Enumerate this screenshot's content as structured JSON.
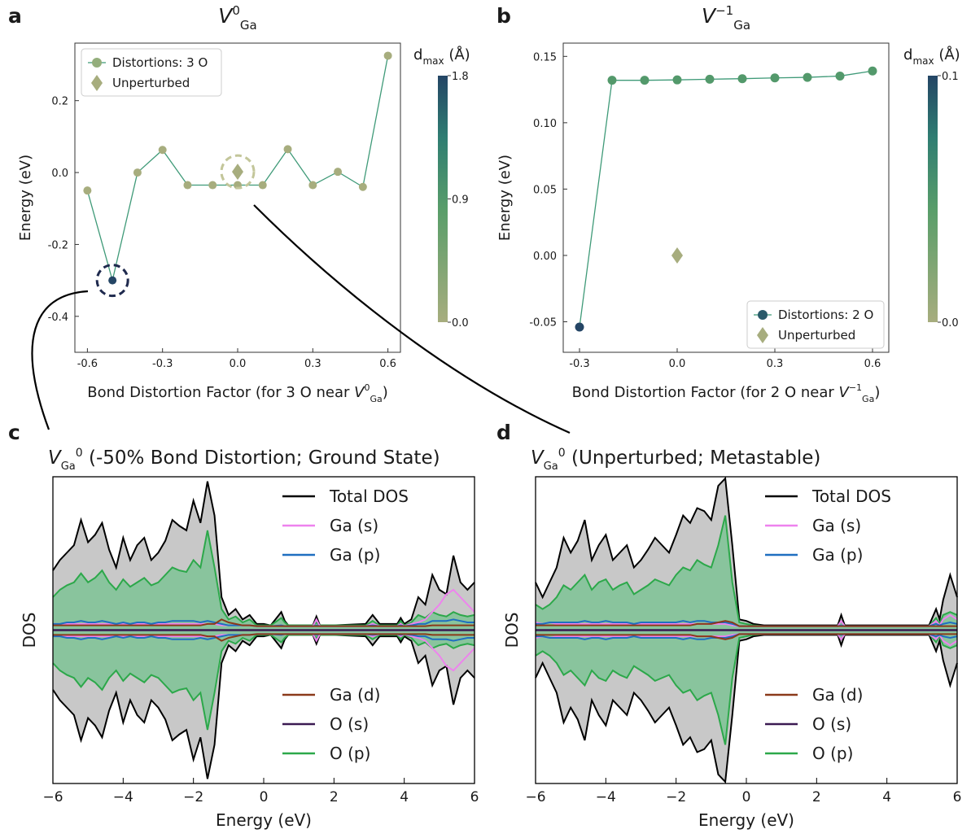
{
  "panels": {
    "a": "a",
    "b": "b",
    "c": "c",
    "d": "d"
  },
  "colors": {
    "cmap_low": "#a7ad7e",
    "cmap_mid": "#3f9466",
    "cmap_high": "#244565",
    "line_ab": "#3f9a78",
    "total": "#000000",
    "ga_s": "#ee82ee",
    "ga_p": "#1f6fc0",
    "ga_d": "#8b3a1a",
    "o_s": "#3b1a52",
    "o_p": "#2ca84a",
    "fill_total": "#c8c8c8",
    "fill_op": "#89c49d",
    "dashed_unp": "#c3c69a",
    "dashed_min": "#1f2a4e"
  },
  "chart_data": [
    {
      "type": "scatter",
      "panel": "a",
      "title": "V^0_Ga",
      "title_parts": {
        "main": "V",
        "sup": "0",
        "sub": "Ga"
      },
      "xlabel": "Bond Distortion Factor (for 3 O near V^0_Ga)",
      "xlabel_parts": {
        "text": "Bond Distortion Factor (for 3 O near ",
        "v": "V",
        "sup": "0",
        "sub": "Ga",
        "end": ")"
      },
      "ylabel": "Energy (eV)",
      "xlim": [
        -0.65,
        0.65
      ],
      "ylim": [
        -0.5,
        0.36
      ],
      "xticks": [
        -0.6,
        -0.3,
        0.0,
        0.3,
        0.6
      ],
      "xtick_labels": [
        "-0.6",
        "-0.3",
        "0.0",
        "0.3",
        "0.6"
      ],
      "yticks": [
        -0.4,
        -0.2,
        0.0,
        0.2
      ],
      "ytick_labels": [
        "-0.4",
        "-0.2",
        "0.0",
        "0.2"
      ],
      "series": [
        {
          "name": "Distortions: 3 O",
          "x": [
            -0.6,
            -0.5,
            -0.4,
            -0.3,
            -0.2,
            -0.1,
            0.0,
            0.1,
            0.2,
            0.3,
            0.4,
            0.5,
            0.6
          ],
          "y": [
            -0.05,
            -0.3,
            0.0,
            0.063,
            -0.035,
            -0.035,
            -0.035,
            -0.035,
            0.065,
            -0.035,
            0.002,
            -0.04,
            0.325
          ],
          "dmax": [
            0.0,
            1.8,
            0.0,
            0.0,
            0.0,
            0.0,
            0.0,
            0.0,
            0.0,
            0.0,
            0.0,
            0.0,
            0.0
          ]
        }
      ],
      "unperturbed": {
        "name": "Unperturbed",
        "x": 0.0,
        "y": 0.002
      },
      "legend_entries": [
        "Distortions: 3 O",
        "Unperturbed"
      ],
      "legend": "top-left",
      "colorbar": {
        "label": "d_max (Å)",
        "label_main": "d",
        "label_sub": "max",
        "label_unit": "(Å)",
        "ticks": [
          0.0,
          0.9,
          1.8
        ],
        "tick_labels": [
          "0.0",
          "0.9",
          "1.8"
        ]
      }
    },
    {
      "type": "scatter",
      "panel": "b",
      "title": "V^-1_Ga",
      "title_parts": {
        "main": "V",
        "sup": "−1",
        "sub": "Ga"
      },
      "xlabel": "Bond Distortion Factor (for 2 O near V^-1_Ga)",
      "xlabel_parts": {
        "text": "Bond Distortion Factor (for 2 O near ",
        "v": "V",
        "sup": "−1",
        "sub": "Ga",
        "end": ")"
      },
      "ylabel": "Energy (eV)",
      "xlim": [
        -0.35,
        0.65
      ],
      "ylim": [
        -0.073,
        0.16
      ],
      "xticks": [
        -0.3,
        0.0,
        0.3,
        0.6
      ],
      "xtick_labels": [
        "-0.3",
        "0.0",
        "0.3",
        "0.6"
      ],
      "yticks": [
        -0.05,
        0.0,
        0.05,
        0.1,
        0.15
      ],
      "ytick_labels": [
        "-0.05",
        "0.00",
        "0.05",
        "0.10",
        "0.15"
      ],
      "series": [
        {
          "name": "Distortions: 2 O",
          "x": [
            -0.3,
            -0.2,
            -0.1,
            0.0,
            0.1,
            0.2,
            0.3,
            0.4,
            0.5,
            0.6
          ],
          "y": [
            -0.054,
            0.132,
            0.132,
            0.1323,
            0.1328,
            0.1332,
            0.1338,
            0.1342,
            0.1352,
            0.139
          ],
          "dmax": [
            0.1,
            0.05,
            0.05,
            0.05,
            0.05,
            0.05,
            0.05,
            0.05,
            0.05,
            0.05
          ]
        }
      ],
      "unperturbed": {
        "name": "Unperturbed",
        "x": 0.0,
        "y": 0.0
      },
      "legend_entries": [
        "Distortions: 2 O",
        "Unperturbed"
      ],
      "legend": "bottom-right",
      "colorbar": {
        "label": "d_max (Å)",
        "label_main": "d",
        "label_sub": "max",
        "label_unit": "(Å)",
        "ticks": [
          0.0,
          0.1
        ],
        "tick_labels": [
          "0.0",
          "0.1"
        ]
      }
    },
    {
      "type": "area",
      "panel": "c",
      "title": "V_Ga^0 (-50% Bond Distortion; Ground State)",
      "title_parts": {
        "main": "V",
        "sub": "Ga",
        "sup": "0",
        "rest": " (-50% Bond Distortion; Ground State)"
      },
      "xlabel": "Energy (eV)",
      "ylabel": "DOS",
      "xlim": [
        -6,
        6
      ],
      "xticks": [
        -6,
        -4,
        -2,
        0,
        2,
        4,
        6
      ],
      "xtick_labels": [
        "−6",
        "−4",
        "−2",
        "0",
        "2",
        "4",
        "6"
      ],
      "ylim": [
        -1,
        1
      ],
      "legend_top": [
        "Total DOS",
        "Ga (s)",
        "Ga (p)"
      ],
      "legend_bottom": [
        "Ga (d)",
        "O (s)",
        "O (p)"
      ],
      "x": [
        -6,
        -5.8,
        -5.6,
        -5.4,
        -5.2,
        -5.0,
        -4.8,
        -4.6,
        -4.4,
        -4.2,
        -4.0,
        -3.8,
        -3.6,
        -3.4,
        -3.2,
        -3.0,
        -2.8,
        -2.6,
        -2.4,
        -2.2,
        -2.0,
        -1.8,
        -1.6,
        -1.4,
        -1.2,
        -1.0,
        -0.8,
        -0.6,
        -0.4,
        -0.2,
        0,
        0.2,
        0.5,
        0.6,
        0.7,
        1.0,
        1.4,
        1.5,
        1.6,
        2.0,
        2.9,
        3.1,
        3.3,
        3.8,
        3.9,
        4.0,
        4.2,
        4.4,
        4.6,
        4.8,
        5.0,
        5.2,
        5.4,
        5.6,
        5.8,
        6.0
      ],
      "total": [
        0.38,
        0.45,
        0.5,
        0.55,
        0.72,
        0.57,
        0.62,
        0.7,
        0.52,
        0.4,
        0.6,
        0.45,
        0.55,
        0.6,
        0.45,
        0.5,
        0.58,
        0.72,
        0.68,
        0.65,
        0.85,
        0.7,
        0.98,
        0.75,
        0.2,
        0.08,
        0.12,
        0.05,
        0.08,
        0.02,
        0.02,
        0.01,
        0.1,
        0.04,
        0.01,
        0.01,
        0.01,
        0.07,
        0.01,
        0.01,
        0.02,
        0.08,
        0.02,
        0.02,
        0.06,
        0.02,
        0.05,
        0.2,
        0.15,
        0.35,
        0.25,
        0.22,
        0.48,
        0.3,
        0.25,
        0.3
      ],
      "o_p": [
        0.2,
        0.25,
        0.28,
        0.3,
        0.36,
        0.3,
        0.33,
        0.38,
        0.3,
        0.25,
        0.32,
        0.27,
        0.3,
        0.33,
        0.28,
        0.3,
        0.35,
        0.4,
        0.38,
        0.37,
        0.45,
        0.4,
        0.65,
        0.4,
        0.12,
        0.05,
        0.07,
        0.03,
        0.05,
        0.01,
        0.01,
        0.01,
        0.06,
        0.03,
        0.01,
        0.01,
        0.01,
        0.03,
        0.01,
        0.01,
        0.01,
        0.04,
        0.01,
        0.01,
        0.04,
        0.01,
        0.03,
        0.08,
        0.06,
        0.1,
        0.08,
        0.07,
        0.1,
        0.08,
        0.07,
        0.08
      ],
      "ga_s": [
        0.02,
        0.02,
        0.02,
        0.02,
        0.02,
        0.02,
        0.02,
        0.02,
        0.02,
        0.02,
        0.02,
        0.02,
        0.02,
        0.02,
        0.02,
        0.02,
        0.02,
        0.02,
        0.02,
        0.02,
        0.02,
        0.02,
        0.02,
        0.02,
        0.01,
        0.01,
        0.01,
        0.01,
        0.01,
        0.005,
        0.005,
        0.005,
        0.01,
        0.005,
        0.005,
        0.005,
        0.005,
        0.05,
        0.005,
        0.005,
        0.005,
        0.02,
        0.005,
        0.005,
        0.02,
        0.005,
        0.02,
        0.03,
        0.05,
        0.1,
        0.15,
        0.22,
        0.25,
        0.2,
        0.15,
        0.1
      ],
      "ga_p": [
        0.02,
        0.02,
        0.03,
        0.03,
        0.04,
        0.03,
        0.03,
        0.04,
        0.03,
        0.02,
        0.03,
        0.02,
        0.03,
        0.03,
        0.02,
        0.03,
        0.03,
        0.04,
        0.04,
        0.04,
        0.04,
        0.03,
        0.04,
        0.03,
        0.02,
        0.01,
        0.01,
        0.01,
        0.01,
        0.005,
        0.005,
        0.005,
        0.01,
        0.005,
        0.005,
        0.005,
        0.005,
        0.01,
        0.005,
        0.005,
        0.005,
        0.01,
        0.005,
        0.005,
        0.01,
        0.005,
        0.01,
        0.02,
        0.02,
        0.04,
        0.04,
        0.04,
        0.05,
        0.04,
        0.03,
        0.03
      ],
      "ga_d": [
        0.01,
        0.01,
        0.01,
        0.01,
        0.01,
        0.01,
        0.01,
        0.01,
        0.01,
        0.01,
        0.01,
        0.01,
        0.01,
        0.01,
        0.01,
        0.01,
        0.01,
        0.01,
        0.01,
        0.01,
        0.01,
        0.01,
        0.02,
        0.02,
        0.05,
        0.03,
        0.02,
        0.01,
        0.01,
        0.005,
        0.005,
        0.005,
        0.005,
        0.005,
        0.005,
        0.005,
        0.005,
        0.005,
        0.005,
        0.005,
        0.005,
        0.005,
        0.005,
        0.005,
        0.005,
        0.005,
        0.005,
        0.005,
        0.005,
        0.01,
        0.01,
        0.01,
        0.01,
        0.01,
        0.01,
        0.01
      ]
    },
    {
      "type": "area",
      "panel": "d",
      "title": "V_Ga^0 (Unperturbed; Metastable)",
      "title_parts": {
        "main": "V",
        "sub": "Ga",
        "sup": "0",
        "rest": " (Unperturbed; Metastable)"
      },
      "xlabel": "Energy (eV)",
      "ylabel": "DOS",
      "xlim": [
        -6,
        6
      ],
      "xticks": [
        -6,
        -4,
        -2,
        0,
        2,
        4,
        6
      ],
      "xtick_labels": [
        "−6",
        "−4",
        "−2",
        "0",
        "2",
        "4",
        "6"
      ],
      "ylim": [
        -1,
        1
      ],
      "legend_top": [
        "Total DOS",
        "Ga (s)",
        "Ga (p)"
      ],
      "legend_bottom": [
        "Ga (d)",
        "O (s)",
        "O (p)"
      ],
      "x": [
        -6,
        -5.8,
        -5.6,
        -5.4,
        -5.2,
        -5.0,
        -4.8,
        -4.6,
        -4.4,
        -4.2,
        -4.0,
        -3.8,
        -3.6,
        -3.4,
        -3.2,
        -3.0,
        -2.8,
        -2.6,
        -2.4,
        -2.2,
        -2.0,
        -1.8,
        -1.6,
        -1.4,
        -1.2,
        -1.0,
        -0.8,
        -0.6,
        -0.4,
        -0.2,
        0,
        0.2,
        0.5,
        1.0,
        2.0,
        2.6,
        2.7,
        2.8,
        3.5,
        4.5,
        5.2,
        5.4,
        5.5,
        5.6,
        5.8,
        6.0
      ],
      "total": [
        0.3,
        0.2,
        0.3,
        0.4,
        0.6,
        0.5,
        0.58,
        0.72,
        0.45,
        0.55,
        0.62,
        0.45,
        0.5,
        0.55,
        0.4,
        0.45,
        0.52,
        0.6,
        0.55,
        0.5,
        0.62,
        0.75,
        0.7,
        0.8,
        0.78,
        0.72,
        0.95,
        1.0,
        0.55,
        0.05,
        0.04,
        0.02,
        0.01,
        0.01,
        0.01,
        0.01,
        0.08,
        0.01,
        0.01,
        0.01,
        0.01,
        0.12,
        0.05,
        0.18,
        0.35,
        0.2
      ],
      "o_p": [
        0.15,
        0.12,
        0.15,
        0.2,
        0.28,
        0.25,
        0.3,
        0.35,
        0.25,
        0.3,
        0.32,
        0.25,
        0.28,
        0.3,
        0.22,
        0.25,
        0.28,
        0.32,
        0.3,
        0.28,
        0.35,
        0.4,
        0.38,
        0.45,
        0.42,
        0.4,
        0.55,
        0.75,
        0.3,
        0.03,
        0.02,
        0.01,
        0.005,
        0.005,
        0.005,
        0.005,
        0.04,
        0.005,
        0.005,
        0.005,
        0.005,
        0.06,
        0.02,
        0.08,
        0.1,
        0.08
      ],
      "ga_s": [
        0.03,
        0.02,
        0.03,
        0.02,
        0.02,
        0.02,
        0.02,
        0.02,
        0.02,
        0.02,
        0.02,
        0.02,
        0.02,
        0.02,
        0.02,
        0.02,
        0.02,
        0.02,
        0.02,
        0.02,
        0.02,
        0.02,
        0.02,
        0.02,
        0.02,
        0.02,
        0.02,
        0.02,
        0.01,
        0.005,
        0.005,
        0.005,
        0.005,
        0.005,
        0.005,
        0.005,
        0.04,
        0.005,
        0.005,
        0.005,
        0.005,
        0.04,
        0.01,
        0.05,
        0.08,
        0.05
      ],
      "ga_p": [
        0.02,
        0.02,
        0.03,
        0.03,
        0.03,
        0.03,
        0.03,
        0.04,
        0.03,
        0.03,
        0.04,
        0.03,
        0.03,
        0.03,
        0.02,
        0.03,
        0.03,
        0.03,
        0.03,
        0.03,
        0.03,
        0.04,
        0.03,
        0.04,
        0.04,
        0.03,
        0.03,
        0.03,
        0.02,
        0.005,
        0.005,
        0.005,
        0.005,
        0.005,
        0.005,
        0.005,
        0.01,
        0.005,
        0.005,
        0.005,
        0.005,
        0.02,
        0.01,
        0.02,
        0.03,
        0.02
      ],
      "ga_d": [
        0.01,
        0.01,
        0.01,
        0.01,
        0.01,
        0.01,
        0.01,
        0.01,
        0.01,
        0.01,
        0.01,
        0.01,
        0.01,
        0.01,
        0.01,
        0.01,
        0.01,
        0.01,
        0.01,
        0.01,
        0.01,
        0.01,
        0.01,
        0.02,
        0.02,
        0.02,
        0.03,
        0.04,
        0.03,
        0.005,
        0.005,
        0.005,
        0.005,
        0.005,
        0.005,
        0.005,
        0.005,
        0.005,
        0.005,
        0.005,
        0.005,
        0.005,
        0.005,
        0.005,
        0.005,
        0.005
      ]
    }
  ]
}
